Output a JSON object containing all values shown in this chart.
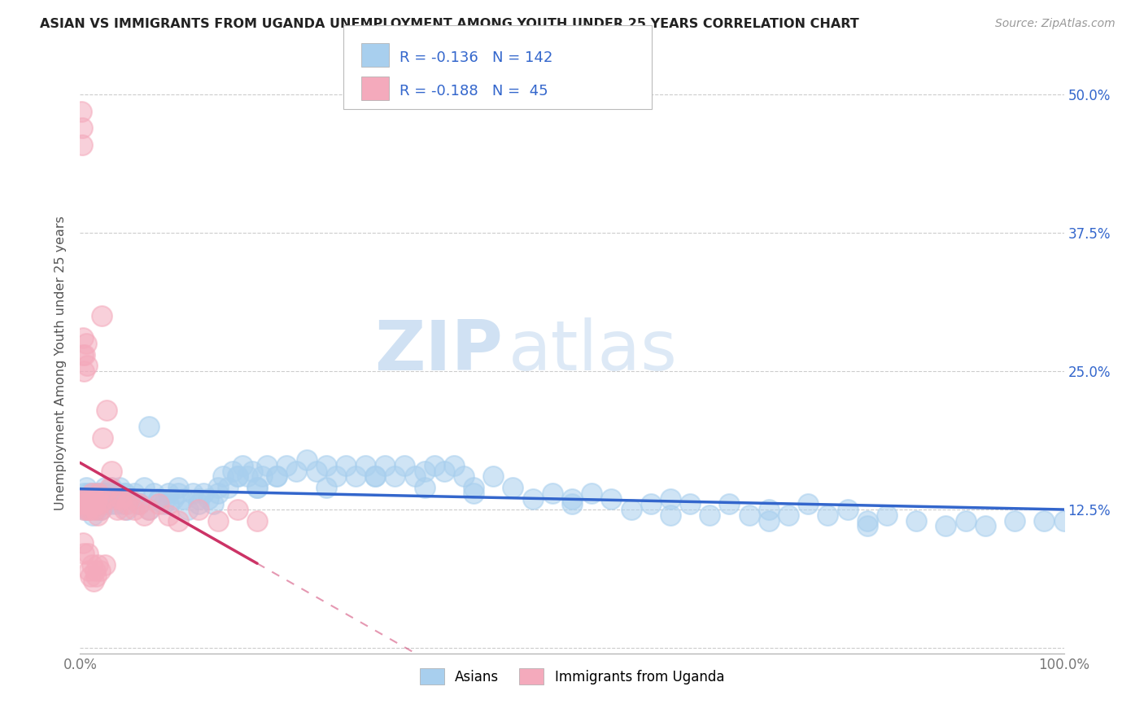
{
  "title": "ASIAN VS IMMIGRANTS FROM UGANDA UNEMPLOYMENT AMONG YOUTH UNDER 25 YEARS CORRELATION CHART",
  "source": "Source: ZipAtlas.com",
  "ylabel": "Unemployment Among Youth under 25 years",
  "xlim": [
    0.0,
    1.0
  ],
  "ylim": [
    -0.005,
    0.52
  ],
  "xticks": [
    0.0,
    0.1,
    0.2,
    0.3,
    0.4,
    0.5,
    0.6,
    0.7,
    0.8,
    0.9,
    1.0
  ],
  "ytick_positions": [
    0.0,
    0.125,
    0.25,
    0.375,
    0.5
  ],
  "ytick_labels": [
    "",
    "12.5%",
    "25.0%",
    "37.5%",
    "50.0%"
  ],
  "legend_label1": "Asians",
  "legend_label2": "Immigrants from Uganda",
  "R1": "-0.136",
  "N1": "142",
  "R2": "-0.188",
  "N2": "45",
  "color_blue": "#A8CFEE",
  "color_pink": "#F4AABC",
  "color_blue_line": "#3366CC",
  "color_pink_line": "#CC3366",
  "color_blue_text": "#3366CC",
  "color_axis_text": "#777777",
  "watermark_zip": "ZIP",
  "watermark_atlas": "atlas",
  "background": "#FFFFFF",
  "asian_x": [
    0.003,
    0.004,
    0.005,
    0.006,
    0.007,
    0.008,
    0.009,
    0.01,
    0.011,
    0.012,
    0.013,
    0.014,
    0.015,
    0.016,
    0.017,
    0.018,
    0.019,
    0.02,
    0.021,
    0.022,
    0.023,
    0.024,
    0.025,
    0.026,
    0.027,
    0.028,
    0.03,
    0.032,
    0.034,
    0.036,
    0.038,
    0.04,
    0.042,
    0.044,
    0.046,
    0.048,
    0.05,
    0.055,
    0.06,
    0.065,
    0.07,
    0.075,
    0.08,
    0.085,
    0.09,
    0.095,
    0.1,
    0.105,
    0.11,
    0.115,
    0.12,
    0.125,
    0.13,
    0.135,
    0.14,
    0.145,
    0.15,
    0.155,
    0.16,
    0.165,
    0.17,
    0.175,
    0.18,
    0.185,
    0.19,
    0.2,
    0.21,
    0.22,
    0.23,
    0.24,
    0.25,
    0.26,
    0.27,
    0.28,
    0.29,
    0.3,
    0.31,
    0.32,
    0.33,
    0.34,
    0.35,
    0.36,
    0.37,
    0.38,
    0.39,
    0.4,
    0.42,
    0.44,
    0.46,
    0.48,
    0.5,
    0.52,
    0.54,
    0.56,
    0.58,
    0.6,
    0.62,
    0.64,
    0.66,
    0.68,
    0.7,
    0.72,
    0.74,
    0.76,
    0.78,
    0.8,
    0.82,
    0.85,
    0.88,
    0.9,
    0.92,
    0.95,
    0.98,
    1.0,
    0.005,
    0.01,
    0.015,
    0.02,
    0.025,
    0.03,
    0.035,
    0.04,
    0.045,
    0.05,
    0.06,
    0.07,
    0.08,
    0.09,
    0.1,
    0.12,
    0.14,
    0.16,
    0.18,
    0.2,
    0.25,
    0.3,
    0.35,
    0.4,
    0.5,
    0.6,
    0.7,
    0.8
  ],
  "asian_y": [
    0.135,
    0.14,
    0.13,
    0.145,
    0.125,
    0.14,
    0.135,
    0.13,
    0.14,
    0.135,
    0.12,
    0.13,
    0.14,
    0.135,
    0.125,
    0.13,
    0.14,
    0.135,
    0.125,
    0.13,
    0.14,
    0.135,
    0.145,
    0.13,
    0.14,
    0.135,
    0.13,
    0.145,
    0.135,
    0.13,
    0.14,
    0.145,
    0.135,
    0.13,
    0.14,
    0.125,
    0.135,
    0.14,
    0.13,
    0.145,
    0.2,
    0.14,
    0.135,
    0.13,
    0.14,
    0.135,
    0.145,
    0.135,
    0.125,
    0.14,
    0.13,
    0.14,
    0.135,
    0.13,
    0.14,
    0.155,
    0.145,
    0.16,
    0.155,
    0.165,
    0.155,
    0.16,
    0.145,
    0.155,
    0.165,
    0.155,
    0.165,
    0.16,
    0.17,
    0.16,
    0.165,
    0.155,
    0.165,
    0.155,
    0.165,
    0.155,
    0.165,
    0.155,
    0.165,
    0.155,
    0.16,
    0.165,
    0.16,
    0.165,
    0.155,
    0.145,
    0.155,
    0.145,
    0.135,
    0.14,
    0.135,
    0.14,
    0.135,
    0.125,
    0.13,
    0.135,
    0.13,
    0.12,
    0.13,
    0.12,
    0.125,
    0.12,
    0.13,
    0.12,
    0.125,
    0.115,
    0.12,
    0.115,
    0.11,
    0.115,
    0.11,
    0.115,
    0.115,
    0.115,
    0.125,
    0.135,
    0.13,
    0.135,
    0.14,
    0.135,
    0.14,
    0.135,
    0.14,
    0.135,
    0.13,
    0.125,
    0.135,
    0.13,
    0.14,
    0.135,
    0.145,
    0.155,
    0.145,
    0.155,
    0.145,
    0.155,
    0.145,
    0.14,
    0.13,
    0.12,
    0.115,
    0.11
  ],
  "uganda_x": [
    0.001,
    0.002,
    0.003,
    0.004,
    0.005,
    0.006,
    0.007,
    0.008,
    0.009,
    0.01,
    0.011,
    0.012,
    0.013,
    0.014,
    0.015,
    0.016,
    0.017,
    0.018,
    0.019,
    0.02,
    0.021,
    0.022,
    0.023,
    0.025,
    0.027,
    0.03,
    0.032,
    0.035,
    0.038,
    0.04,
    0.042,
    0.045,
    0.048,
    0.05,
    0.055,
    0.06,
    0.065,
    0.07,
    0.08,
    0.09,
    0.1,
    0.12,
    0.14,
    0.16,
    0.18
  ],
  "uganda_y": [
    0.135,
    0.13,
    0.135,
    0.125,
    0.13,
    0.135,
    0.125,
    0.13,
    0.125,
    0.13,
    0.125,
    0.14,
    0.13,
    0.135,
    0.125,
    0.13,
    0.135,
    0.12,
    0.14,
    0.13,
    0.125,
    0.3,
    0.19,
    0.135,
    0.215,
    0.145,
    0.16,
    0.135,
    0.125,
    0.135,
    0.135,
    0.125,
    0.13,
    0.135,
    0.125,
    0.13,
    0.12,
    0.125,
    0.13,
    0.12,
    0.115,
    0.125,
    0.115,
    0.125,
    0.115
  ],
  "uganda_x_outliers": [
    0.001,
    0.002,
    0.002,
    0.003,
    0.003,
    0.004,
    0.005,
    0.006,
    0.007,
    0.008,
    0.009,
    0.01,
    0.012,
    0.014,
    0.015,
    0.016,
    0.018,
    0.02,
    0.025,
    0.003,
    0.004
  ],
  "uganda_y_outliers": [
    0.485,
    0.47,
    0.455,
    0.28,
    0.265,
    0.25,
    0.265,
    0.275,
    0.255,
    0.085,
    0.07,
    0.065,
    0.075,
    0.06,
    0.07,
    0.065,
    0.075,
    0.07,
    0.075,
    0.095,
    0.085
  ]
}
